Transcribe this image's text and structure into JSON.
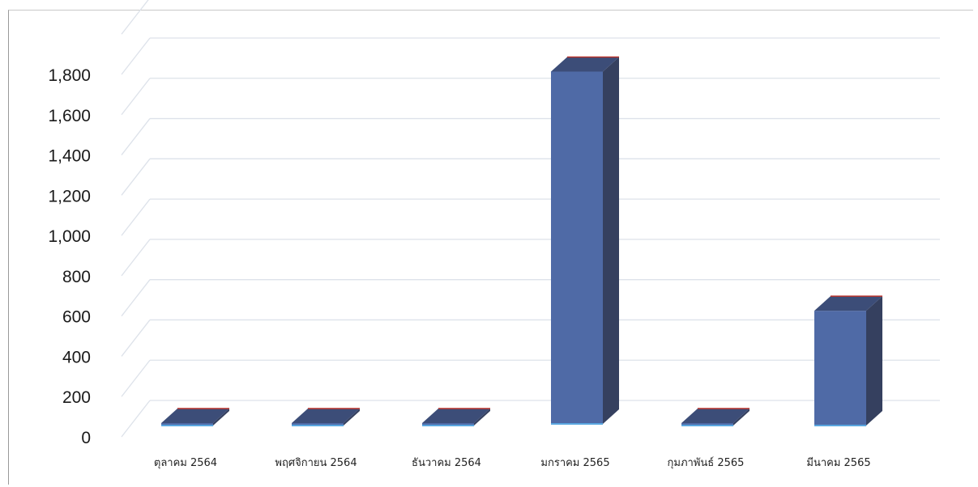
{
  "chart_data": {
    "type": "bar",
    "categories": [
      "ตุลาคม 2564",
      "พฤศจิกายน 2564",
      "ธันวาคม 2564",
      "มกราคม 2565",
      "กุมภาพันธ์ 2565",
      "มีนาคม 2565"
    ],
    "values": [
      5,
      3,
      4,
      1750,
      3,
      570
    ],
    "ylim": [
      0,
      2000
    ],
    "yticks": [
      0,
      200,
      400,
      600,
      800,
      1000,
      1200,
      1400,
      1600,
      1800
    ],
    "ytick_labels": [
      "0",
      "200",
      "400",
      "600",
      "800",
      "1,000",
      "1,200",
      "1,400",
      "1,600",
      "1,800"
    ],
    "grid": true,
    "legend": "none",
    "style": "3d-column"
  },
  "colors": {
    "bar_front": "#4f6aa6",
    "bar_side": "#35405f",
    "bar_top": "#3c4d78",
    "bar_top_edge": "#b8322a",
    "bar_base_edge": "#5aa7e0",
    "grid": "#dde2ea"
  }
}
